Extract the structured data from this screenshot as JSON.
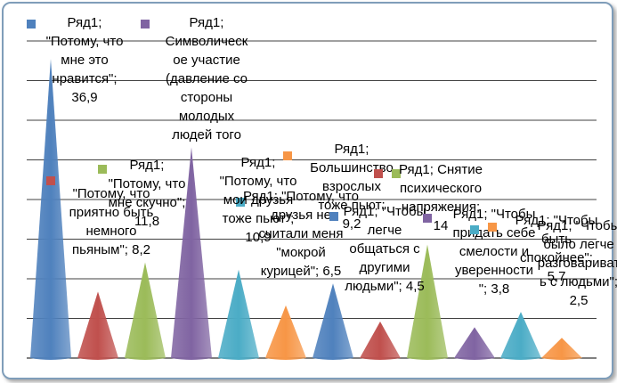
{
  "chart_data": {
    "type": "bar",
    "mark": "cone",
    "series": [
      {
        "name": "Ряд1",
        "values": [
          36.9,
          8.2,
          11.8,
          26,
          10.9,
          6.5,
          9.2,
          4.5,
          14,
          3.8,
          5.7,
          2.5
        ]
      }
    ],
    "categories": [
      "Потому, что мне это нравится",
      "Потому, что приятно быть немного пьяным",
      "Потому, что мне скучно",
      "Символическое участие (давление со стороны молодых людей того",
      "Потому, что мои друзья тоже пьют",
      "Потому, что друзья не считали меня «мокрой курицей»",
      "Большинство взрослых тоже пьют",
      "Чтобы легче общаться с другими людьми",
      "Снятие психического напряжения",
      "Чтобы придать себе смелости и уверенности",
      "Чтобы быть спокойнее",
      "Чтобы было легче разговаривать с людьми"
    ],
    "data_labels": [
      "Ряд1; \"Потому, что мне это нравится\"; 36,9",
      "Ряд1; \"Потому, что приятно быть немного пьяным\"; 8,2",
      "Ряд1; \"Потому, что мне скучно\"; 11,8",
      "Ряд1; Символическое участие (давление со стороны молодых людей того",
      "Ряд1; \"Потому, что мои друзья тоже пьют\"; 10,9",
      "Ряд1; \"Потому, что друзья не считали меня «мокрой курицей»\"; 6,5",
      "Ряд1; Большинство взрослых тоже пьют; 9,2",
      "Ряд1; \"Чтобы легче общаться с другими людьми\"; 4,5",
      "Ряд1; Снятие психического напряжения; 14",
      "Ряд1; \"Чтобы придать себе смелости и уверенности\"; 3,8",
      "Ряд1; \"Чтобы быть спокойнее\"; 5,7",
      "Ряд1; \"Чтобы было легче разговаривать с людьми\"; 2,5"
    ],
    "colors": [
      "#4f81bd",
      "#c0504d",
      "#9bbb59",
      "#8064a2",
      "#4bacc6",
      "#f79646",
      "#4f81bd",
      "#c0504d",
      "#9bbb59",
      "#8064a2",
      "#4bacc6",
      "#f79646"
    ],
    "ylim": [
      0,
      40
    ],
    "gridlines": true,
    "legend": "none",
    "title": "",
    "xlabel": "",
    "ylabel": ""
  }
}
